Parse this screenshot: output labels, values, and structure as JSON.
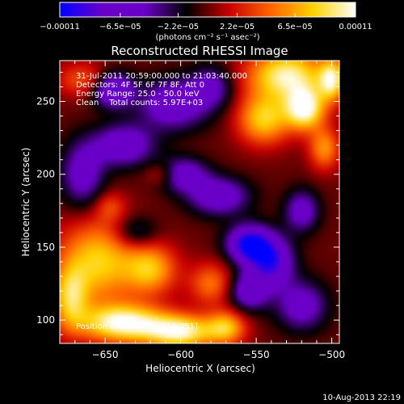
{
  "chart_data": {
    "type": "heatmap",
    "title": "Reconstructed RHESSI Image",
    "xlabel": "Heliocentric X (arcsec)",
    "ylabel": "Heliocentric Y (arcsec)",
    "x_range": [
      -680,
      -495
    ],
    "y_range": [
      84,
      278
    ],
    "x_ticks": [
      -650,
      -600,
      -550,
      -500
    ],
    "x_tick_labels": [
      "−650",
      "−600",
      "−550",
      "−500"
    ],
    "y_ticks": [
      100,
      150,
      200,
      250
    ],
    "y_tick_labels": [
      "100",
      "150",
      "200",
      "250"
    ],
    "colorbar": {
      "min": -0.00011,
      "max": 0.00011,
      "ticks": [
        -0.00011,
        -6.5e-05,
        -2.2e-05,
        2.2e-05,
        6.5e-05,
        0.00011
      ],
      "tick_labels": [
        "−0.00011",
        "−6.5e−05",
        "−2.2e−05",
        "2.2e−05",
        "6.5e−05",
        "0.00011"
      ],
      "unit": "(photons cm⁻² s⁻¹ asec⁻²)",
      "colors": [
        "#0000ff",
        "#6a00c8",
        "#6a00c8",
        "#000000",
        "#c80000",
        "#ff6400",
        "#ffd200",
        "#ffffff"
      ]
    },
    "annotations": [
      "31-Jul-2011 20:59:00.000 to 21:03:40.000",
      "Detectors: 4F 5F 6F 7F 8F, Att 0",
      "Energy Range: 25.0 - 50.0 keV",
      "Clean    Total counts: 5.97E+03"
    ],
    "peak_label": "Position of Peak = [−511,251]",
    "peak_position": [
      -511,
      251
    ],
    "footer": "10-Aug-2013 22:19",
    "grid": false,
    "features": [
      {
        "x": -655,
        "y": 140,
        "value": 8e-05,
        "sx": 18,
        "sy": 20
      },
      {
        "x": -620,
        "y": 135,
        "value": 7e-05,
        "sx": 12,
        "sy": 12
      },
      {
        "x": -638,
        "y": 98,
        "value": 0.00011,
        "sx": 20,
        "sy": 9
      },
      {
        "x": -600,
        "y": 92,
        "value": 0.0001,
        "sx": 16,
        "sy": 8
      },
      {
        "x": -673,
        "y": 115,
        "value": 7e-05,
        "sx": 8,
        "sy": 15
      },
      {
        "x": -570,
        "y": 95,
        "value": 7e-05,
        "sx": 9,
        "sy": 8
      },
      {
        "x": -580,
        "y": 125,
        "value": 5e-05,
        "sx": 10,
        "sy": 10
      },
      {
        "x": -530,
        "y": 268,
        "value": 0.0001,
        "sx": 18,
        "sy": 12
      },
      {
        "x": -518,
        "y": 245,
        "value": 0.00011,
        "sx": 9,
        "sy": 10
      },
      {
        "x": -545,
        "y": 238,
        "value": 8e-05,
        "sx": 12,
        "sy": 12
      },
      {
        "x": -505,
        "y": 218,
        "value": 6e-05,
        "sx": 7,
        "sy": 10
      },
      {
        "x": -500,
        "y": 265,
        "value": 9e-05,
        "sx": 6,
        "sy": 10
      },
      {
        "x": -665,
        "y": 265,
        "value": 4e-05,
        "sx": 12,
        "sy": 8
      },
      {
        "x": -612,
        "y": 200,
        "value": 4e-05,
        "sx": 8,
        "sy": 6
      },
      {
        "x": -647,
        "y": 178,
        "value": 3e-05,
        "sx": 7,
        "sy": 7
      },
      {
        "x": -555,
        "y": 152,
        "value": -0.00011,
        "sx": 10,
        "sy": 9
      },
      {
        "x": -540,
        "y": 140,
        "value": -9e-05,
        "sx": 10,
        "sy": 12
      },
      {
        "x": -575,
        "y": 185,
        "value": -7e-05,
        "sx": 14,
        "sy": 9
      },
      {
        "x": -600,
        "y": 200,
        "value": -7e-05,
        "sx": 12,
        "sy": 8
      },
      {
        "x": -638,
        "y": 220,
        "value": -7e-05,
        "sx": 14,
        "sy": 10
      },
      {
        "x": -665,
        "y": 200,
        "value": -6e-05,
        "sx": 10,
        "sy": 16
      },
      {
        "x": -605,
        "y": 248,
        "value": -7e-05,
        "sx": 16,
        "sy": 12
      },
      {
        "x": -645,
        "y": 258,
        "value": -9e-05,
        "sx": 9,
        "sy": 8
      },
      {
        "x": -580,
        "y": 260,
        "value": -5e-05,
        "sx": 10,
        "sy": 10
      },
      {
        "x": -520,
        "y": 175,
        "value": -6e-05,
        "sx": 8,
        "sy": 10
      },
      {
        "x": -520,
        "y": 110,
        "value": -6e-05,
        "sx": 12,
        "sy": 12
      },
      {
        "x": -555,
        "y": 120,
        "value": -7e-05,
        "sx": 9,
        "sy": 9
      },
      {
        "x": -630,
        "y": 160,
        "value": -4e-05,
        "sx": 10,
        "sy": 8
      }
    ]
  }
}
